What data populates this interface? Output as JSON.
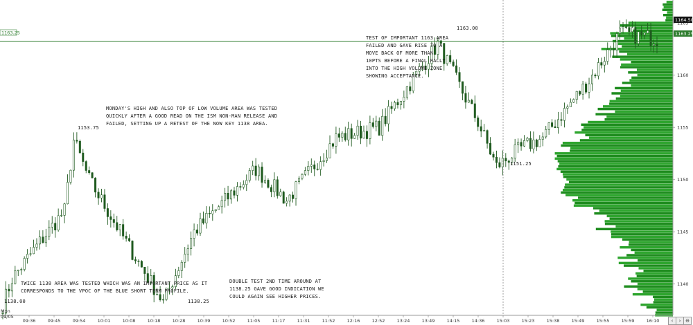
{
  "chart_data": {
    "type": "candlestick",
    "x_ticks": [
      "09:36",
      "09:45",
      "09:54",
      "10:01",
      "10:08",
      "10:18",
      "10:28",
      "10:39",
      "10:52",
      "11:05",
      "11:17",
      "11:31",
      "11:52",
      "12:16",
      "12:52",
      "13:24",
      "13:49",
      "14:15",
      "14:36",
      "15:03",
      "15:23",
      "15:38",
      "15:49",
      "15:55",
      "15:59",
      "16:10"
    ],
    "x_sub_label": [
      "Mon",
      "09/05"
    ],
    "y_ticks": [
      1140,
      1145,
      1150,
      1155,
      1160,
      1165
    ],
    "ylim": [
      1137,
      1167.2
    ],
    "last_price": "1164.50",
    "level_price": "1163.25",
    "level_value": 1163.25,
    "level_tag_left": "1163.25",
    "vline_time": "15:03",
    "price_path": [
      [
        0,
        1138
      ],
      [
        3,
        1140.5
      ],
      [
        12,
        1144
      ],
      [
        20,
        1147
      ],
      [
        23,
        1153.75
      ],
      [
        28,
        1150
      ],
      [
        40,
        1144
      ],
      [
        52,
        1138.25
      ],
      [
        62,
        1145
      ],
      [
        82,
        1151
      ],
      [
        92,
        1148
      ],
      [
        108,
        1154
      ],
      [
        122,
        1155
      ],
      [
        141,
        1163
      ],
      [
        154,
        1155.5
      ],
      [
        160,
        1151.25
      ],
      [
        168,
        1153
      ],
      [
        175,
        1154
      ],
      [
        190,
        1159.5
      ],
      [
        200,
        1164
      ],
      [
        212,
        1163.5
      ]
    ],
    "volume_profile_note": "profile",
    "point_labels": [
      {
        "text": "1138.00",
        "price": 1138.0
      },
      {
        "text": "1153.75",
        "price": 1153.75
      },
      {
        "text": "1138.25",
        "price": 1138.25
      },
      {
        "text": "1163.00",
        "price": 1163.0
      },
      {
        "text": "1151.25",
        "price": 1151.25
      }
    ],
    "annotations": [
      {
        "lines": [
          "MONDAY'S HIGH AND ALSO TOP OF LOW VOLUME AREA WAS TESTED",
          "QUICKLY AFTER A GOOD READ ON THE ISM NON-MAN RELEASE AND",
          "FAILED, SETTING UP A RETEST OF THE NOW KEY 1138 AREA."
        ]
      },
      {
        "lines": [
          "TEST OF IMPORTANT 1163 AREA",
          "FAILED AND GAVE RISE TO A",
          "MOVE BACK OF MORE THAN",
          "10PTS BEFORE A FINAL RALLY",
          "INTO THE HIGH VOLUME ZONE",
          "SHOWING ACCEPTANCE."
        ]
      },
      {
        "lines": [
          "TWICE 1138 AREA WAS TESTED WHICH WAS AN IMPORTANT PRICE AS IT",
          "CORRESPONDS TO THE VPOC OF THE BLUE SHORT TERM PROFILE."
        ]
      },
      {
        "lines": [
          "DOUBLE TEST 2ND TIME AROUND AT",
          "1138.25 GAVE GOOD INDICATION WE",
          "COULD AGAIN SEE HIGHER PRICES."
        ]
      }
    ],
    "colors": {
      "candle": "#1f5a1f",
      "profile": "#2ea52e",
      "profile_dark": "#1e8c1e",
      "level_line": "#2e7d2e",
      "vline": "#888888",
      "last_price_bg": "#111111",
      "level_tag_bg": "#2e7d2e"
    }
  },
  "ui": {
    "nav_left": "‹",
    "nav_right": "›",
    "zoom": "⊖"
  }
}
